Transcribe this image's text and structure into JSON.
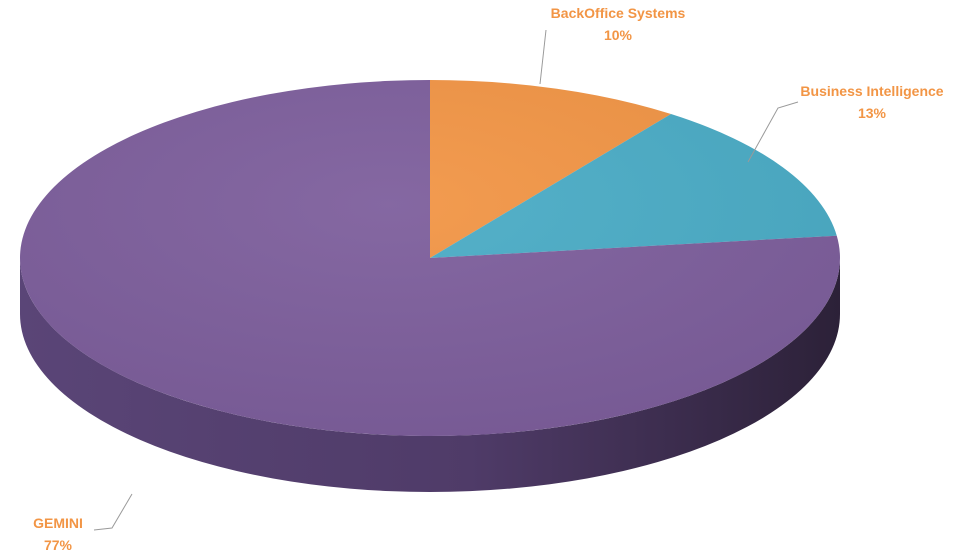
{
  "chart_data": {
    "type": "pie",
    "style": "3d",
    "categories": [
      "BackOffice Systems",
      "Business Intelligence",
      "GEMINI"
    ],
    "values": [
      10,
      13,
      77
    ],
    "value_labels": [
      "10%",
      "13%",
      "77%"
    ],
    "colors": [
      "#F29545",
      "#4AACC6",
      "#7D5E9C"
    ],
    "label_color": "#F29545",
    "legend": "none"
  }
}
